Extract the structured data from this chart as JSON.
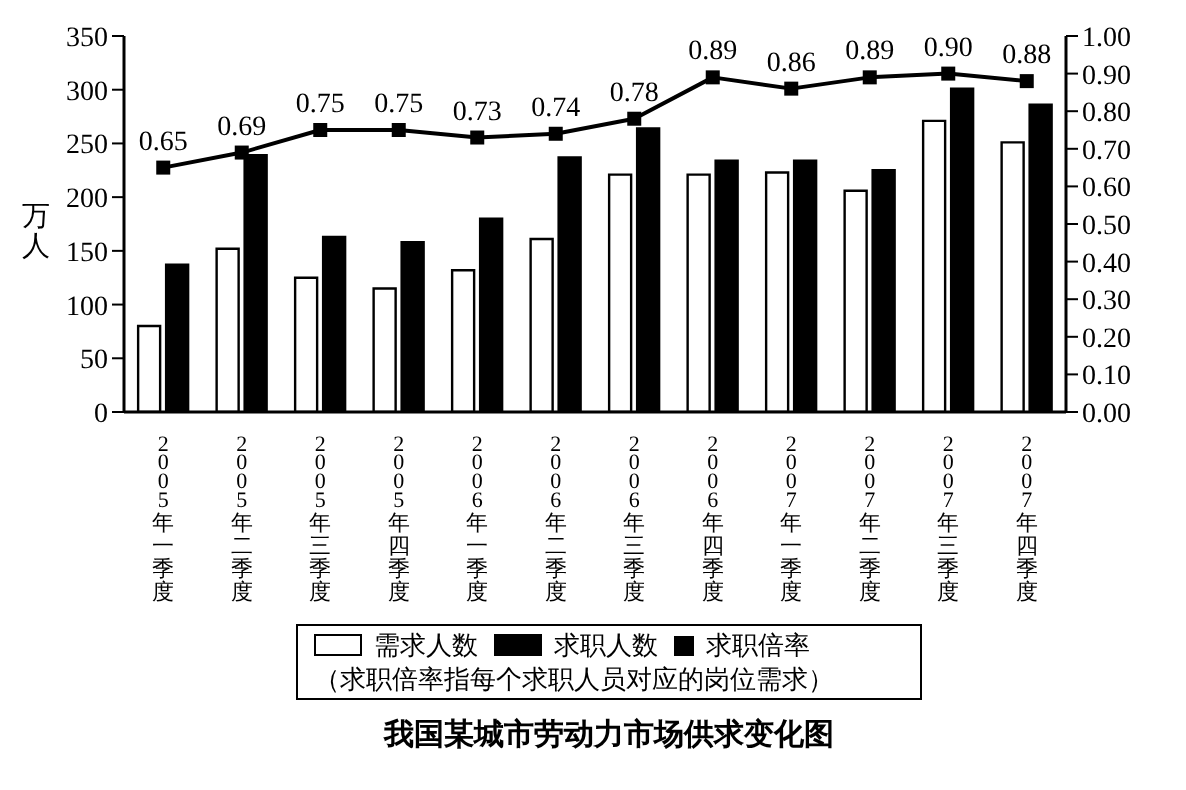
{
  "chart_data": {
    "type": "bar",
    "title": "我国某城市劳动力市场供求变化图",
    "ylabel": "万人",
    "annotations": [
      "（求职倍率指每个求职人员对应的岗位需求）"
    ],
    "categories": [
      "2005年一季度",
      "2005年二季度",
      "2005年三季度",
      "2005年四季度",
      "2006年一季度",
      "2006年二季度",
      "2006年三季度",
      "2006年四季度",
      "2007年一季度",
      "2007年二季度",
      "2007年三季度",
      "2007年四季度"
    ],
    "series": [
      {
        "name": "需求人数",
        "color": "#ffffff",
        "values": [
          80,
          152,
          125,
          115,
          132,
          161,
          221,
          221,
          223,
          206,
          271,
          251
        ]
      },
      {
        "name": "求职人数",
        "color": "#000000",
        "values": [
          137,
          239,
          163,
          158,
          180,
          237,
          264,
          234,
          234,
          225,
          301,
          286
        ]
      },
      {
        "name": "求职倍率",
        "type": "line",
        "axis": "y2",
        "color": "#000000",
        "marker": "square",
        "values": [
          0.65,
          0.69,
          0.75,
          0.75,
          0.73,
          0.74,
          0.78,
          0.89,
          0.86,
          0.89,
          0.9,
          0.88
        ],
        "value_labels": [
          "0.65",
          "0.69",
          "0.75",
          "0.75",
          "0.73",
          "0.74",
          "0.78",
          "0.89",
          "0.86",
          "0.89",
          "0.90",
          "0.88"
        ]
      }
    ],
    "ylim": [
      0,
      350
    ],
    "yticks": [
      0,
      50,
      100,
      150,
      200,
      250,
      300,
      350
    ],
    "y2lim": [
      0,
      1
    ],
    "y2ticks": [
      {
        "value": 0,
        "label": "0.00"
      },
      {
        "value": 0.1,
        "label": "0.10"
      },
      {
        "value": 0.2,
        "label": "0.20"
      },
      {
        "value": 0.3,
        "label": "0.30"
      },
      {
        "value": 0.4,
        "label": "0.40"
      },
      {
        "value": 0.5,
        "label": "0.50"
      },
      {
        "value": 0.6,
        "label": "0.60"
      },
      {
        "value": 0.7,
        "label": "0.70"
      },
      {
        "value": 0.8,
        "label": "0.80"
      },
      {
        "value": 0.9,
        "label": "0.90"
      },
      {
        "value": 1,
        "label": "1.00"
      }
    ],
    "grid": false,
    "legend": "bottom"
  }
}
